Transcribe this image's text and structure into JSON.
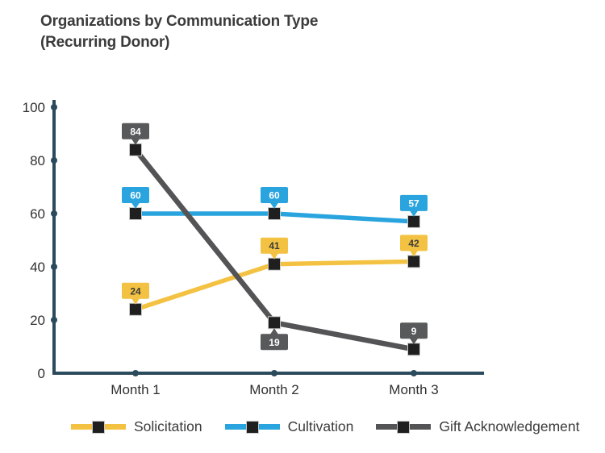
{
  "title": {
    "line1": "Organizations by Communication Type",
    "line2": "(Recurring Donor)"
  },
  "chart_data": {
    "type": "line",
    "title": "Organizations by Communication Type (Recurring Donor)",
    "categories": [
      "Month 1",
      "Month 2",
      "Month 3"
    ],
    "series": [
      {
        "name": "Solicitation",
        "values": [
          24,
          41,
          42
        ],
        "color": "#F4C242",
        "label_bg": "#F4C242",
        "label_text_color": "#3B3B3B",
        "label_side": [
          "above",
          "above",
          "above"
        ]
      },
      {
        "name": "Cultivation",
        "values": [
          60,
          60,
          57
        ],
        "color": "#2AA4DE",
        "label_bg": "#2AA4DE",
        "label_text_color": "#FFFFFF",
        "label_side": [
          "above",
          "above",
          "above"
        ]
      },
      {
        "name": "Gift Acknowledgement",
        "values": [
          84,
          19,
          9
        ],
        "color": "#545456",
        "label_bg": "#58595B",
        "label_text_color": "#FFFFFF",
        "label_side": [
          "above",
          "below",
          "above"
        ]
      }
    ],
    "y_ticks": [
      0,
      20,
      40,
      60,
      80,
      100
    ],
    "ylim": [
      0,
      100
    ],
    "grid": false,
    "legend_position": "bottom",
    "axis_color": "#2B4A5C",
    "tick_label_color": "#303030",
    "marker": {
      "shape": "square",
      "fill": "#1F1F1F",
      "stroke": "#C9C9C9"
    }
  }
}
